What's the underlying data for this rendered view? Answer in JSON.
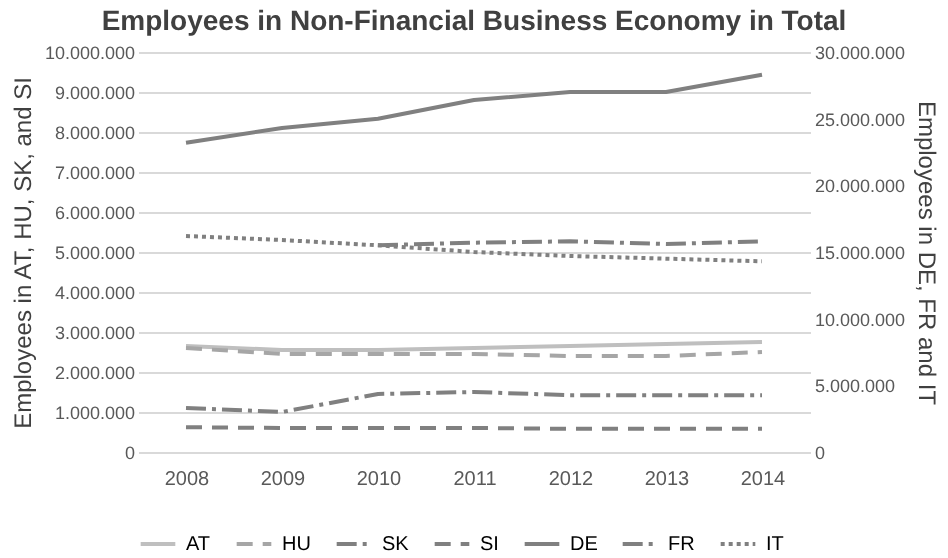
{
  "chart_data": {
    "type": "line",
    "title": "Employees in Non-Financial Business Economy in Total",
    "ylabel": "Employees in AT, HU, SK, and SI",
    "y2label": "Employees in DE, FR and IT",
    "categories": [
      "2008",
      "2009",
      "2010",
      "2011",
      "2012",
      "2013",
      "2014"
    ],
    "series": [
      {
        "name": "AT",
        "color": "#bfbfbf",
        "line_style": "solid",
        "values": [
          2650000,
          2550000,
          2550000,
          2600000,
          2650000,
          2700000,
          2750000
        ]
      },
      {
        "name": "HU",
        "color": "#a6a6a6",
        "line_style": "dashed",
        "values": [
          2600000,
          2450000,
          2450000,
          2450000,
          2400000,
          2400000,
          2500000
        ]
      },
      {
        "name": "SK",
        "color": "#808080",
        "line_style": "dashdot",
        "values": [
          1100000,
          1000000,
          1450000,
          1500000,
          1420000,
          1420000,
          1420000
        ]
      },
      {
        "name": "SI",
        "color": "#808080",
        "line_style": "dashed",
        "values": [
          620000,
          600000,
          600000,
          600000,
          580000,
          580000,
          580000
        ]
      },
      {
        "name": "DE",
        "color": "#808080",
        "line_style": "solid",
        "axis": "y2",
        "values": [
          23200000,
          24300000,
          25000000,
          26400000,
          27000000,
          27000000,
          28300000
        ]
      },
      {
        "name": "FR",
        "color": "#808080",
        "line_style": "dashdot",
        "axis": "y2",
        "values": [
          null,
          null,
          15500000,
          15700000,
          15800000,
          15600000,
          15800000
        ]
      },
      {
        "name": "IT",
        "color": "#808080",
        "line_style": "dotted",
        "axis": "y2",
        "values": [
          16200000,
          15900000,
          15500000,
          15000000,
          14700000,
          14500000,
          14300000
        ]
      }
    ],
    "ylim": [
      0,
      10000000
    ],
    "yticks": [
      {
        "value": 0,
        "label": "0"
      },
      {
        "value": 1000000,
        "label": "1.000.000"
      },
      {
        "value": 2000000,
        "label": "2.000.000"
      },
      {
        "value": 3000000,
        "label": "3.000.000"
      },
      {
        "value": 4000000,
        "label": "4.000.000"
      },
      {
        "value": 5000000,
        "label": "5.000.000"
      },
      {
        "value": 6000000,
        "label": "6.000.000"
      },
      {
        "value": 7000000,
        "label": "7.000.000"
      },
      {
        "value": 8000000,
        "label": "8.000.000"
      },
      {
        "value": 9000000,
        "label": "9.000.000"
      },
      {
        "value": 10000000,
        "label": "10.000.000"
      }
    ],
    "y2lim": [
      0,
      30000000
    ],
    "y2ticks": [
      {
        "value": 0,
        "label": "0"
      },
      {
        "value": 5000000,
        "label": "5.000.000"
      },
      {
        "value": 10000000,
        "label": "10.000.000"
      },
      {
        "value": 15000000,
        "label": "15.000.000"
      },
      {
        "value": 20000000,
        "label": "20.000.000"
      },
      {
        "value": 25000000,
        "label": "25.000.000"
      },
      {
        "value": 30000000,
        "label": "30.000.000"
      }
    ],
    "grid": "y",
    "legend": "bottom"
  }
}
